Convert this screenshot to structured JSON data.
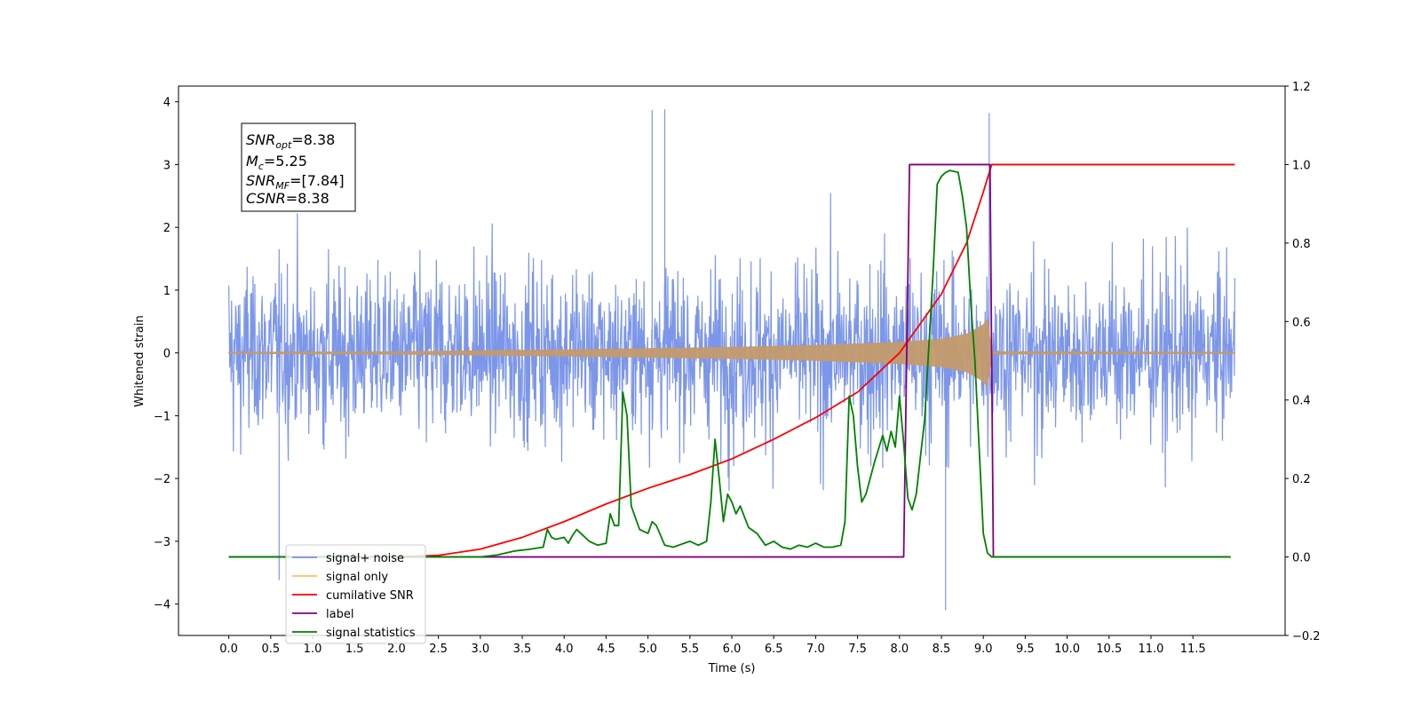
{
  "chart_data": {
    "type": "line",
    "xlabel": "Time (s)",
    "ylabel": "Whitened strain",
    "xlim": [
      -0.6,
      12.6
    ],
    "ylim_left": [
      -4.5,
      4.25
    ],
    "ylim_right": [
      -0.2,
      1.2
    ],
    "x_ticks": [
      "0.0",
      "0.5",
      "1.0",
      "1.5",
      "2.0",
      "2.5",
      "3.0",
      "3.5",
      "4.0",
      "4.5",
      "5.0",
      "5.5",
      "6.0",
      "6.5",
      "7.0",
      "7.5",
      "8.0",
      "8.5",
      "9.0",
      "9.5",
      "10.0",
      "10.5",
      "11.0",
      "11.5"
    ],
    "y_ticks_left": [
      "4",
      "3",
      "2",
      "1",
      "0",
      "−1",
      "−2",
      "−3",
      "−4"
    ],
    "y_ticks_right": [
      "1.2",
      "1.0",
      "0.8",
      "0.6",
      "0.4",
      "0.2",
      "0.0",
      "−0.2"
    ],
    "grid": false,
    "legend_position": "lower-left",
    "annotation": {
      "snr_opt": {
        "base": "SNR",
        "sub": "opt",
        "value": "=8.38"
      },
      "mc": {
        "base": "M",
        "sub": "c",
        "value": "=5.25"
      },
      "snr_mf": {
        "base": "SNR",
        "sub": "MF",
        "value": "=[7.84]"
      },
      "csnr": {
        "base": "CSNR",
        "value": "=8.38"
      }
    },
    "series": [
      {
        "name": "signal+ noise",
        "axis": "left",
        "color": "#7590e8",
        "description_values": {
          "x_start": 0.0,
          "x_end": 12.0,
          "typical_envelope": [
            -2.0,
            2.0
          ],
          "peaks": [
            [
              5.05,
              3.87
            ],
            [
              5.2,
              3.88
            ],
            [
              9.07,
              3.82
            ],
            [
              8.55,
              -4.1
            ],
            [
              0.6,
              -3.62
            ]
          ]
        }
      },
      {
        "name": "signal only",
        "axis": "left",
        "color": "#c39a6b",
        "envelope": {
          "x": [
            0.0,
            2.0,
            4.0,
            5.0,
            6.0,
            7.0,
            8.0,
            8.5,
            8.8,
            9.0,
            9.05,
            9.1,
            12.0
          ],
          "amp": [
            0.01,
            0.02,
            0.05,
            0.07,
            0.09,
            0.12,
            0.17,
            0.22,
            0.3,
            0.45,
            0.55,
            0.02,
            0.01
          ]
        }
      },
      {
        "name": "cumilative SNR",
        "axis": "right",
        "color": "#ff0000",
        "x": [
          0.0,
          1.0,
          2.0,
          2.5,
          3.0,
          3.5,
          4.0,
          4.5,
          5.0,
          5.5,
          6.0,
          6.5,
          7.0,
          7.5,
          8.0,
          8.5,
          8.8,
          9.0,
          9.1,
          9.2,
          12.0
        ],
        "y": [
          0.0,
          0.0,
          0.0,
          0.004,
          0.02,
          0.05,
          0.09,
          0.135,
          0.175,
          0.21,
          0.25,
          0.3,
          0.355,
          0.42,
          0.52,
          0.67,
          0.8,
          0.93,
          1.0,
          1.0,
          1.0
        ]
      },
      {
        "name": "label",
        "axis": "right",
        "color": "#800080",
        "x": [
          0.0,
          8.05,
          8.12,
          9.08,
          9.12,
          11.95
        ],
        "y": [
          0.0,
          0.0,
          1.0,
          1.0,
          0.0,
          0.0
        ]
      },
      {
        "name": "signal statistics",
        "axis": "right",
        "color": "#008000",
        "x": [
          0.0,
          3.0,
          3.2,
          3.4,
          3.6,
          3.75,
          3.8,
          3.85,
          3.9,
          4.0,
          4.05,
          4.1,
          4.15,
          4.2,
          4.3,
          4.4,
          4.5,
          4.55,
          4.6,
          4.65,
          4.7,
          4.75,
          4.8,
          4.9,
          5.0,
          5.05,
          5.1,
          5.2,
          5.3,
          5.5,
          5.6,
          5.7,
          5.75,
          5.8,
          5.85,
          5.9,
          5.95,
          6.0,
          6.05,
          6.1,
          6.2,
          6.3,
          6.4,
          6.5,
          6.6,
          6.7,
          6.8,
          6.9,
          7.0,
          7.1,
          7.2,
          7.3,
          7.35,
          7.4,
          7.45,
          7.5,
          7.55,
          7.6,
          7.7,
          7.8,
          7.85,
          7.9,
          7.95,
          8.0,
          8.05,
          8.1,
          8.15,
          8.2,
          8.3,
          8.4,
          8.45,
          8.5,
          8.55,
          8.6,
          8.7,
          8.75,
          8.8,
          8.85,
          8.9,
          9.0,
          9.05,
          9.1,
          9.15,
          11.95
        ],
        "y": [
          0.0,
          0.0,
          0.005,
          0.015,
          0.02,
          0.025,
          0.07,
          0.05,
          0.045,
          0.05,
          0.035,
          0.055,
          0.07,
          0.06,
          0.04,
          0.03,
          0.035,
          0.11,
          0.08,
          0.08,
          0.42,
          0.36,
          0.13,
          0.07,
          0.06,
          0.09,
          0.08,
          0.03,
          0.025,
          0.04,
          0.03,
          0.04,
          0.14,
          0.3,
          0.2,
          0.09,
          0.16,
          0.14,
          0.11,
          0.13,
          0.075,
          0.06,
          0.03,
          0.04,
          0.025,
          0.02,
          0.03,
          0.025,
          0.035,
          0.025,
          0.025,
          0.03,
          0.09,
          0.41,
          0.36,
          0.23,
          0.14,
          0.16,
          0.24,
          0.31,
          0.27,
          0.32,
          0.28,
          0.41,
          0.29,
          0.15,
          0.12,
          0.16,
          0.35,
          0.72,
          0.95,
          0.97,
          0.98,
          0.985,
          0.98,
          0.92,
          0.84,
          0.65,
          0.5,
          0.06,
          0.01,
          0.0,
          0.0,
          0.0
        ]
      }
    ]
  }
}
